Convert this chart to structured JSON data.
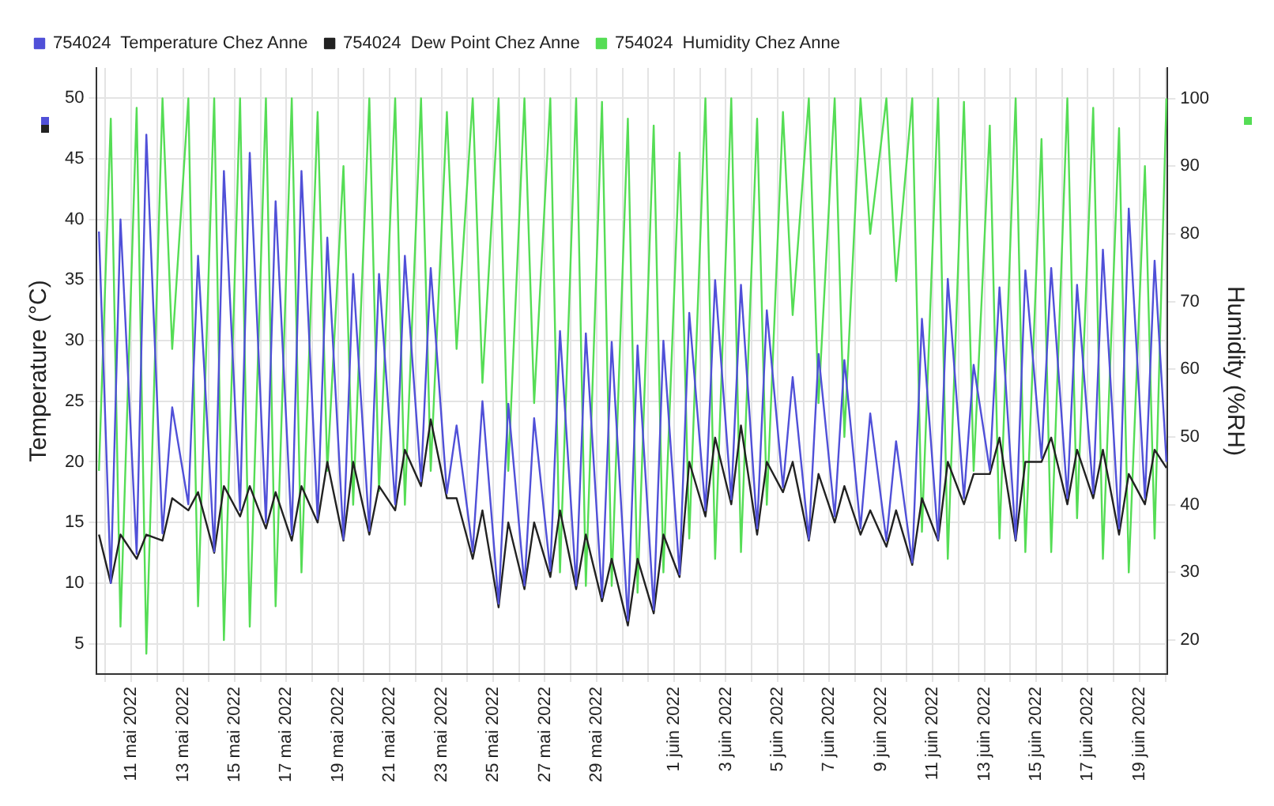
{
  "chart_data": {
    "type": "line",
    "ylabel": "Temperature (°C)",
    "y2label": "Humidity (%RH)",
    "x": [
      "2022-05-09T18:00",
      "2022-05-10T05:00",
      "2022-05-10T14:00",
      "2022-05-11T05:00",
      "2022-05-11T14:00",
      "2022-05-12T05:00",
      "2022-05-12T14:00",
      "2022-05-13T05:00",
      "2022-05-13T14:00",
      "2022-05-14T05:00",
      "2022-05-14T14:00",
      "2022-05-15T05:00",
      "2022-05-15T14:00",
      "2022-05-16T05:00",
      "2022-05-16T14:00",
      "2022-05-17T05:00",
      "2022-05-17T14:00",
      "2022-05-18T05:00",
      "2022-05-18T14:00",
      "2022-05-19T05:00",
      "2022-05-19T14:00",
      "2022-05-20T05:00",
      "2022-05-20T14:00",
      "2022-05-21T05:00",
      "2022-05-21T14:00",
      "2022-05-22T05:00",
      "2022-05-22T14:00",
      "2022-05-23T05:00",
      "2022-05-23T14:00",
      "2022-05-24T05:00",
      "2022-05-24T14:00",
      "2022-05-25T05:00",
      "2022-05-25T14:00",
      "2022-05-26T05:00",
      "2022-05-26T14:00",
      "2022-05-27T05:00",
      "2022-05-27T14:00",
      "2022-05-28T05:00",
      "2022-05-28T14:00",
      "2022-05-29T05:00",
      "2022-05-29T14:00",
      "2022-05-30T05:00",
      "2022-05-30T14:00",
      "2022-05-31T05:00",
      "2022-05-31T14:00",
      "2022-06-01T05:00",
      "2022-06-01T14:00",
      "2022-06-02T05:00",
      "2022-06-02T14:00",
      "2022-06-03T05:00",
      "2022-06-03T14:00",
      "2022-06-04T05:00",
      "2022-06-04T14:00",
      "2022-06-05T05:00",
      "2022-06-05T14:00",
      "2022-06-06T05:00",
      "2022-06-06T14:00",
      "2022-06-07T05:00",
      "2022-06-07T14:00",
      "2022-06-08T05:00",
      "2022-06-08T14:00",
      "2022-06-09T05:00",
      "2022-06-09T14:00",
      "2022-06-10T05:00",
      "2022-06-10T14:00",
      "2022-06-11T05:00",
      "2022-06-11T14:00",
      "2022-06-12T05:00",
      "2022-06-12T14:00",
      "2022-06-13T05:00",
      "2022-06-13T14:00",
      "2022-06-14T05:00",
      "2022-06-14T14:00",
      "2022-06-15T05:00",
      "2022-06-15T14:00",
      "2022-06-16T05:00",
      "2022-06-16T14:00",
      "2022-06-17T05:00",
      "2022-06-17T14:00",
      "2022-06-18T05:00",
      "2022-06-18T14:00",
      "2022-06-19T05:00",
      "2022-06-19T14:00",
      "2022-06-20T01:00"
    ],
    "series": [
      {
        "name": "754024  Temperature Chez Anne",
        "color": "#5050d8",
        "values": [
          39,
          10,
          40,
          12.4,
          47,
          14.1,
          24.5,
          16.5,
          37,
          12.6,
          44,
          16,
          45.5,
          15,
          41.5,
          14,
          44,
          15.3,
          38.5,
          13.6,
          35.5,
          14.3,
          35.5,
          16.5,
          37,
          18.4,
          36,
          17.4,
          23,
          12.6,
          25,
          8.3,
          24.8,
          9.8,
          23.6,
          11,
          30.8,
          9.8,
          30.6,
          8.8,
          29.9,
          6.9,
          29.6,
          7.8,
          30,
          10.7,
          32.3,
          16,
          35,
          16.9,
          34.6,
          14.5,
          32.5,
          17.9,
          27,
          13.6,
          28.9,
          15.5,
          28.4,
          14.5,
          24,
          13.5,
          21.7,
          11.7,
          31.8,
          13.6,
          35.1,
          17,
          28,
          19.3,
          34.4,
          13.6,
          35.8,
          20.3,
          36,
          17,
          34.6,
          17.4,
          37.5,
          14.5,
          40.9,
          17,
          36.6,
          20
        ]
      },
      {
        "name": "754024  Dew Point Chez Anne",
        "color": "#222222",
        "values": [
          14,
          10,
          14,
          12,
          14,
          13.5,
          17,
          16,
          17.5,
          12.5,
          18,
          15.5,
          18,
          14.5,
          17.5,
          13.5,
          18,
          15,
          20,
          13.5,
          20,
          14,
          18,
          16,
          21,
          18,
          23.5,
          17,
          17,
          12,
          16,
          8,
          15,
          9.5,
          15,
          10.5,
          16,
          9.5,
          14,
          8.5,
          12,
          6.5,
          12,
          7.5,
          14,
          10.5,
          20,
          15.5,
          22,
          16.5,
          23,
          14,
          20,
          17.5,
          20,
          13.5,
          19,
          15,
          18,
          14,
          16,
          13,
          16,
          11.5,
          17,
          13.5,
          20,
          16.5,
          19,
          19,
          22,
          13.5,
          20,
          20,
          22,
          16.5,
          21,
          17,
          21,
          14,
          19,
          16.5,
          21,
          19.5
        ]
      },
      {
        "name": "754024  Humidity Chez Anne",
        "color": "#55dd55",
        "axis": "y2",
        "values": [
          45,
          97,
          22,
          98.6,
          18,
          100,
          63,
          100,
          25,
          100,
          20,
          100,
          22,
          100,
          25,
          100,
          30,
          98,
          45,
          90,
          40,
          100,
          42,
          100,
          40,
          100,
          45,
          98,
          63,
          100,
          58,
          100,
          45,
          100,
          55,
          100,
          30,
          100,
          28,
          99.5,
          28,
          97,
          27,
          96,
          30,
          92,
          35,
          100,
          32,
          100,
          33,
          97,
          40,
          98,
          68,
          100,
          55,
          100,
          50,
          100,
          80,
          100,
          73,
          100,
          36,
          100,
          32,
          99.5,
          45,
          96,
          35,
          100,
          33,
          94,
          33,
          100,
          38,
          98.6,
          32,
          95.6,
          30,
          90,
          35,
          100
        ]
      }
    ],
    "xlim": [
      "2022-05-09T16:00",
      "2022-06-20T02:00"
    ],
    "xticks": [
      {
        "value": "2022-05-10",
        "label": null
      },
      {
        "value": "2022-05-11",
        "label": "11 mai 2022"
      },
      {
        "value": "2022-05-12",
        "label": null
      },
      {
        "value": "2022-05-13",
        "label": "13 mai 2022"
      },
      {
        "value": "2022-05-14",
        "label": null
      },
      {
        "value": "2022-05-15",
        "label": "15 mai 2022"
      },
      {
        "value": "2022-05-16",
        "label": null
      },
      {
        "value": "2022-05-17",
        "label": "17 mai 2022"
      },
      {
        "value": "2022-05-18",
        "label": null
      },
      {
        "value": "2022-05-19",
        "label": "19 mai 2022"
      },
      {
        "value": "2022-05-20",
        "label": null
      },
      {
        "value": "2022-05-21",
        "label": "21 mai 2022"
      },
      {
        "value": "2022-05-22",
        "label": null
      },
      {
        "value": "2022-05-23",
        "label": "23 mai 2022"
      },
      {
        "value": "2022-05-24",
        "label": null
      },
      {
        "value": "2022-05-25",
        "label": "25 mai 2022"
      },
      {
        "value": "2022-05-26",
        "label": null
      },
      {
        "value": "2022-05-27",
        "label": "27 mai 2022"
      },
      {
        "value": "2022-05-28",
        "label": null
      },
      {
        "value": "2022-05-29",
        "label": "29 mai 2022"
      },
      {
        "value": "2022-05-30",
        "label": null
      },
      {
        "value": "2022-05-31",
        "label": null
      },
      {
        "value": "2022-06-01",
        "label": "1 juin 2022"
      },
      {
        "value": "2022-06-02",
        "label": null
      },
      {
        "value": "2022-06-03",
        "label": "3 juin 2022"
      },
      {
        "value": "2022-06-04",
        "label": null
      },
      {
        "value": "2022-06-05",
        "label": "5 juin 2022"
      },
      {
        "value": "2022-06-06",
        "label": null
      },
      {
        "value": "2022-06-07",
        "label": "7 juin 2022"
      },
      {
        "value": "2022-06-08",
        "label": null
      },
      {
        "value": "2022-06-09",
        "label": "9 juin 2022"
      },
      {
        "value": "2022-06-10",
        "label": null
      },
      {
        "value": "2022-06-11",
        "label": "11 juin 2022"
      },
      {
        "value": "2022-06-12",
        "label": null
      },
      {
        "value": "2022-06-13",
        "label": "13 juin 2022"
      },
      {
        "value": "2022-06-14",
        "label": null
      },
      {
        "value": "2022-06-15",
        "label": "15 juin 2022"
      },
      {
        "value": "2022-06-16",
        "label": null
      },
      {
        "value": "2022-06-17",
        "label": "17 juin 2022"
      },
      {
        "value": "2022-06-18",
        "label": null
      },
      {
        "value": "2022-06-19",
        "label": "19 juin 2022"
      },
      {
        "value": "2022-06-20",
        "label": null
      }
    ],
    "ylim": [
      2.5,
      52.5
    ],
    "yticks": [
      5,
      10,
      15,
      20,
      25,
      30,
      35,
      40,
      45,
      50
    ],
    "y2lim": [
      15,
      104.5
    ],
    "y2ticks": [
      20,
      30,
      40,
      50,
      60,
      70,
      80,
      90,
      100
    ],
    "grid": true,
    "legend": "top left",
    "marker": "none",
    "line_style": "solid"
  }
}
